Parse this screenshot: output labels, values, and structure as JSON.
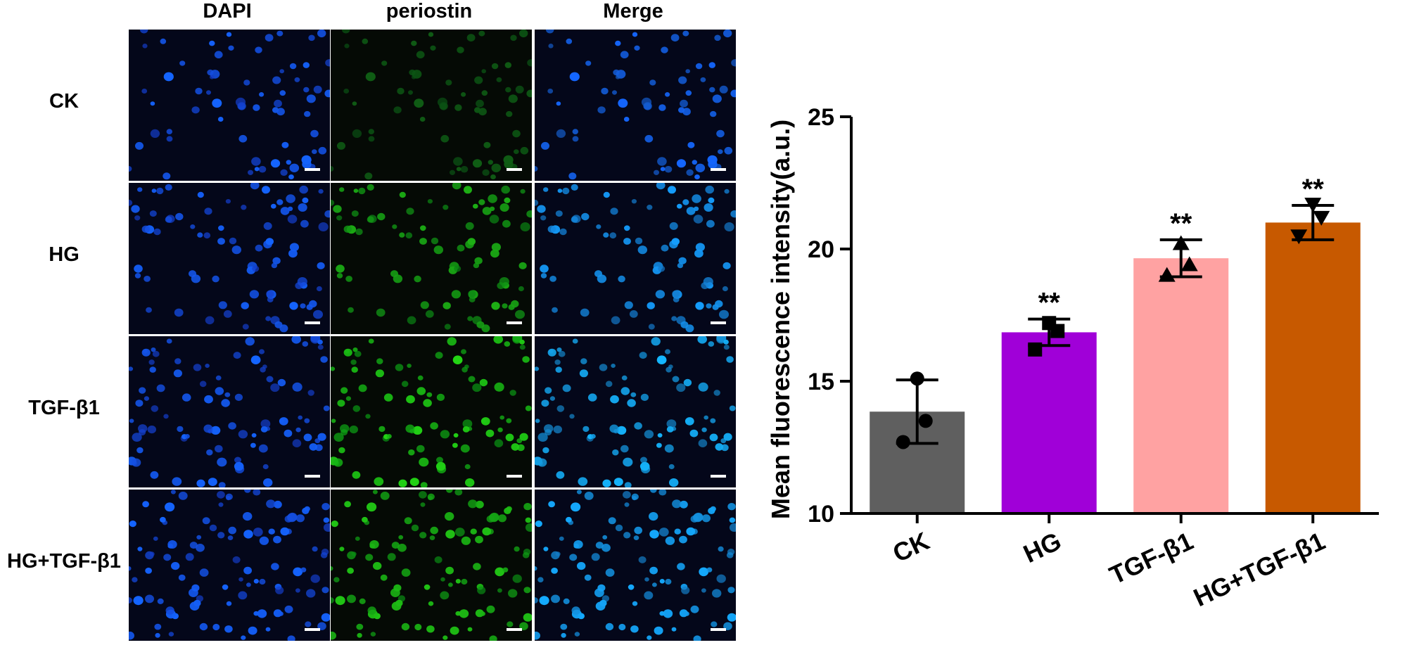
{
  "figure": {
    "columns": [
      "DAPI",
      "periostin",
      "Merge"
    ],
    "rows": [
      "CK",
      "HG",
      "TGF-β1",
      "HG+TGF-β1"
    ]
  },
  "chart_data": {
    "type": "bar",
    "ylabel": "Mean fluorescence intensity(a.u.)",
    "xlabel": "",
    "ylim": [
      10,
      25
    ],
    "yticks": [
      10,
      15,
      20,
      25
    ],
    "categories": [
      "CK",
      "HG",
      "TGF-β1",
      "HG+TGF-β1"
    ],
    "values": [
      13.85,
      16.85,
      19.65,
      21.0
    ],
    "errors": [
      1.2,
      0.5,
      0.7,
      0.65
    ],
    "points": [
      [
        15.1,
        13.5,
        12.7
      ],
      [
        17.2,
        16.9,
        16.2
      ],
      [
        20.2,
        19.4,
        19.0
      ],
      [
        21.7,
        21.2,
        20.5
      ]
    ],
    "markers": [
      "circle",
      "square",
      "triangle-up",
      "triangle-down"
    ],
    "annotations": [
      "",
      "**",
      "**",
      "**"
    ],
    "colors": [
      "#5f5f5f",
      "#a000d8",
      "#ffa2a2",
      "#c75900"
    ]
  }
}
